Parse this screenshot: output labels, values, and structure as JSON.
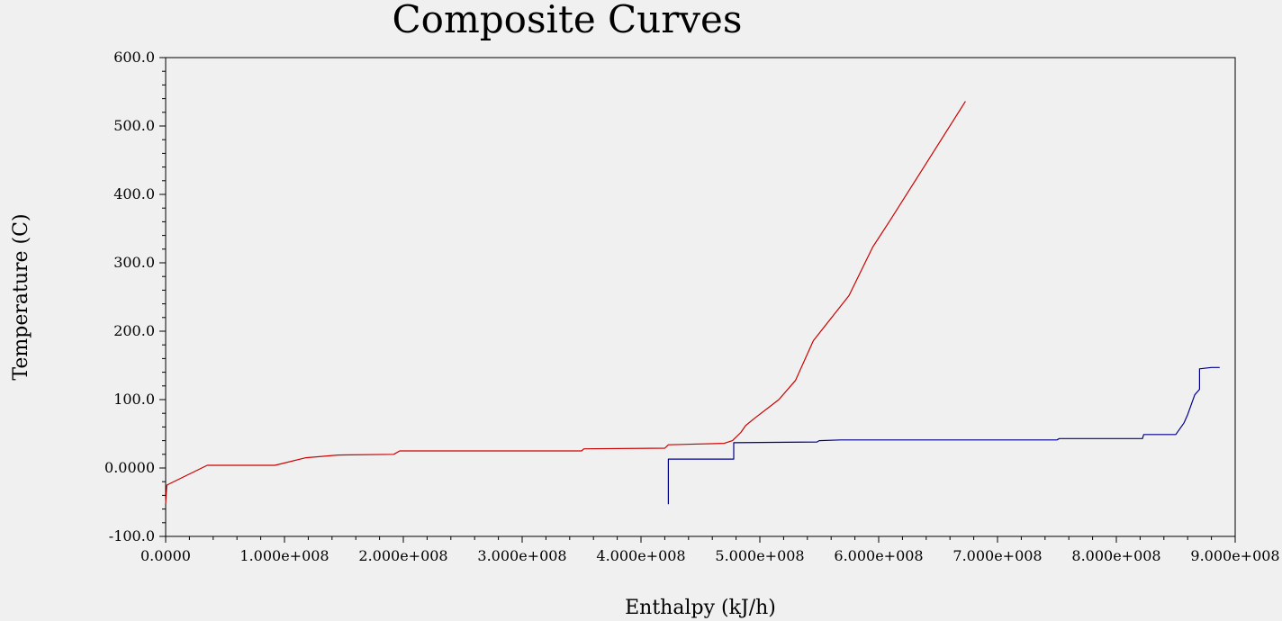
{
  "chart_data": {
    "type": "line",
    "title": "Composite Curves",
    "xlabel": "Enthalpy (kJ/h)",
    "ylabel": "Temperature (C)",
    "xlim": [
      0,
      900000000
    ],
    "ylim": [
      -100,
      600
    ],
    "x_ticks": [
      0,
      100000000,
      200000000,
      300000000,
      400000000,
      500000000,
      600000000,
      700000000,
      800000000,
      900000000
    ],
    "x_tick_labels": [
      "0.0000",
      "1.000e+008",
      "2.000e+008",
      "3.000e+008",
      "4.000e+008",
      "5.000e+008",
      "6.000e+008",
      "7.000e+008",
      "8.000e+008",
      "9.000e+008"
    ],
    "y_ticks": [
      -100,
      0,
      100,
      200,
      300,
      400,
      500,
      600
    ],
    "y_tick_labels": [
      "-100.0",
      "0.0000",
      "100.0",
      "200.0",
      "300.0",
      "400.0",
      "500.0",
      "600.0"
    ],
    "grid": false,
    "legend": "none",
    "series": [
      {
        "color": "#cc0000",
        "points": [
          [
            0,
            -52
          ],
          [
            1000000,
            -25
          ],
          [
            35000000,
            4
          ],
          [
            92000000,
            4
          ],
          [
            118000000,
            15
          ],
          [
            145000000,
            19
          ],
          [
            192000000,
            20
          ],
          [
            197000000,
            25
          ],
          [
            350000000,
            25
          ],
          [
            352000000,
            28
          ],
          [
            420000000,
            29
          ],
          [
            423000000,
            34
          ],
          [
            470000000,
            36
          ],
          [
            477000000,
            40
          ],
          [
            484000000,
            52
          ],
          [
            488000000,
            62
          ],
          [
            495000000,
            72
          ],
          [
            510000000,
            92
          ],
          [
            516000000,
            100
          ],
          [
            530000000,
            128
          ],
          [
            545000000,
            186
          ],
          [
            555000000,
            208
          ],
          [
            575000000,
            252
          ],
          [
            595000000,
            323
          ],
          [
            610000000,
            363
          ],
          [
            673000000,
            536
          ]
        ]
      },
      {
        "color": "#00008b",
        "points": [
          [
            423000000,
            -53
          ],
          [
            423000000,
            13
          ],
          [
            478000000,
            13
          ],
          [
            478000000,
            37
          ],
          [
            548000000,
            38
          ],
          [
            550000000,
            40
          ],
          [
            568000000,
            41
          ],
          [
            750000000,
            41
          ],
          [
            752000000,
            43
          ],
          [
            822000000,
            43
          ],
          [
            823000000,
            49
          ],
          [
            850000000,
            49
          ],
          [
            857000000,
            66
          ],
          [
            860000000,
            78
          ],
          [
            866000000,
            107
          ],
          [
            870000000,
            115
          ],
          [
            870000000,
            145
          ],
          [
            880000000,
            147
          ],
          [
            887000000,
            147
          ]
        ]
      }
    ]
  }
}
